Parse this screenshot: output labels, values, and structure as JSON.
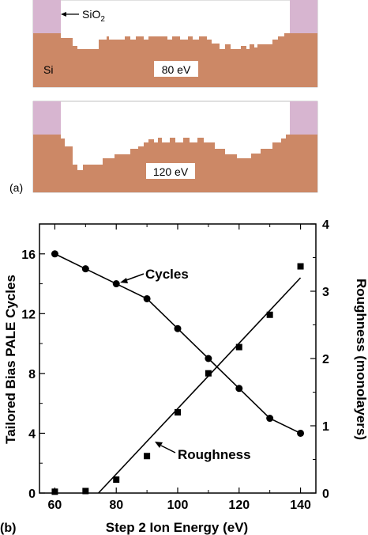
{
  "panel_a": {
    "label": "(a)",
    "top": {
      "sio2_label": "SiO",
      "sio2_sub": "2",
      "si_label": "Si",
      "energy_label": "80 eV"
    },
    "bottom": {
      "energy_label": "120 eV"
    },
    "colors": {
      "si": "#cc8866",
      "sio2": "#d7b5d0",
      "background": "#ffffff"
    }
  },
  "panel_b": {
    "label": "(b)",
    "series_labels": {
      "cycles": "Cycles",
      "roughness": "Roughness"
    }
  },
  "chart_data": {
    "type": "scatter",
    "xlabel": "Step 2 Ion Energy (eV)",
    "ylabel": "Tailored Bias PALE Cycles",
    "y2label": "Roughness (monolayers)",
    "xlim": [
      55,
      145
    ],
    "ylim": [
      0,
      18
    ],
    "y2lim": [
      0,
      4
    ],
    "x_ticks": [
      60,
      80,
      100,
      120,
      140
    ],
    "y_ticks": [
      0,
      4,
      8,
      12,
      16
    ],
    "y2_ticks": [
      0,
      1,
      2,
      3,
      4
    ],
    "grid": false,
    "series": [
      {
        "name": "Cycles",
        "axis": "left",
        "marker": "circle",
        "connect": "line",
        "x": [
          60,
          70,
          80,
          90,
          100,
          110,
          120,
          130,
          140
        ],
        "y": [
          16,
          15,
          14,
          13,
          11,
          9,
          7,
          5,
          4
        ]
      },
      {
        "name": "Roughness",
        "axis": "right",
        "marker": "square",
        "fit": "linear",
        "fit_x": [
          74.2,
          140
        ],
        "fit_y": [
          0,
          3.2
        ],
        "x": [
          60,
          70,
          80,
          90,
          100,
          110,
          120,
          130,
          140
        ],
        "y": [
          0.02,
          0.03,
          0.2,
          0.55,
          1.2,
          1.78,
          2.17,
          2.65,
          3.37
        ]
      }
    ]
  }
}
